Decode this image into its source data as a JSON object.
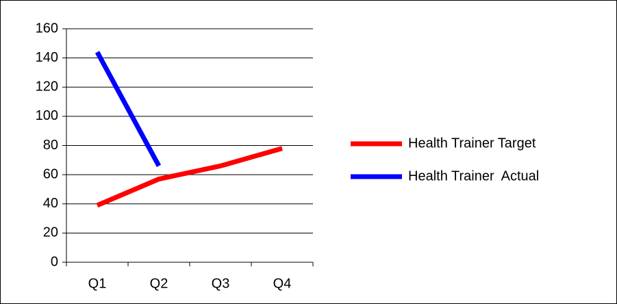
{
  "chart_data": {
    "type": "line",
    "categories": [
      "Q1",
      "Q2",
      "Q3",
      "Q4"
    ],
    "series": [
      {
        "name": "Health Trainer Target",
        "color": "#ff0000",
        "values": [
          39,
          57,
          66,
          78
        ]
      },
      {
        "name": "Health Trainer  Actual",
        "color": "#0000ff",
        "values": [
          144,
          66,
          null,
          null
        ]
      }
    ],
    "ylim": [
      0,
      160
    ],
    "yticks": [
      0,
      20,
      40,
      60,
      80,
      100,
      120,
      140,
      160
    ],
    "grid": true,
    "legend": "right"
  }
}
